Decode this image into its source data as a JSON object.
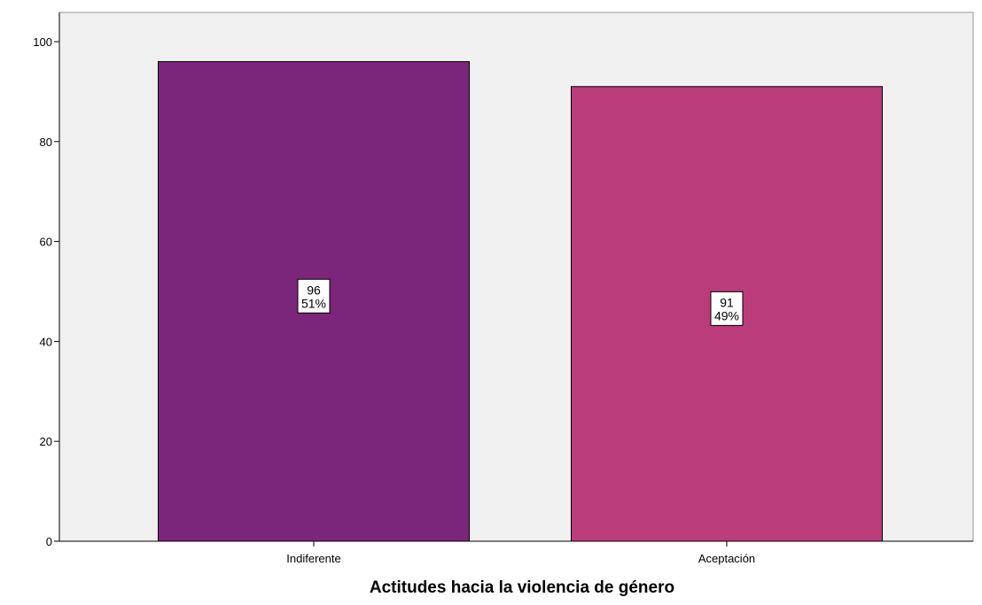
{
  "chart_data": {
    "type": "bar",
    "categories": [
      "Indiferente",
      "Aceptación"
    ],
    "values": [
      96,
      91
    ],
    "percent_labels": [
      "51%",
      "49%"
    ],
    "value_labels": [
      "96",
      "91"
    ],
    "title": "",
    "xlabel": "Actitudes hacia la violencia de género",
    "ylabel": "",
    "ylim": [
      0,
      100
    ],
    "yticks": [
      0,
      20,
      40,
      60,
      80,
      100
    ],
    "grid": false,
    "legend": "none",
    "colors": [
      "#7b267a",
      "#ba3c7a"
    ],
    "plot_background": "#f0f0f0"
  }
}
